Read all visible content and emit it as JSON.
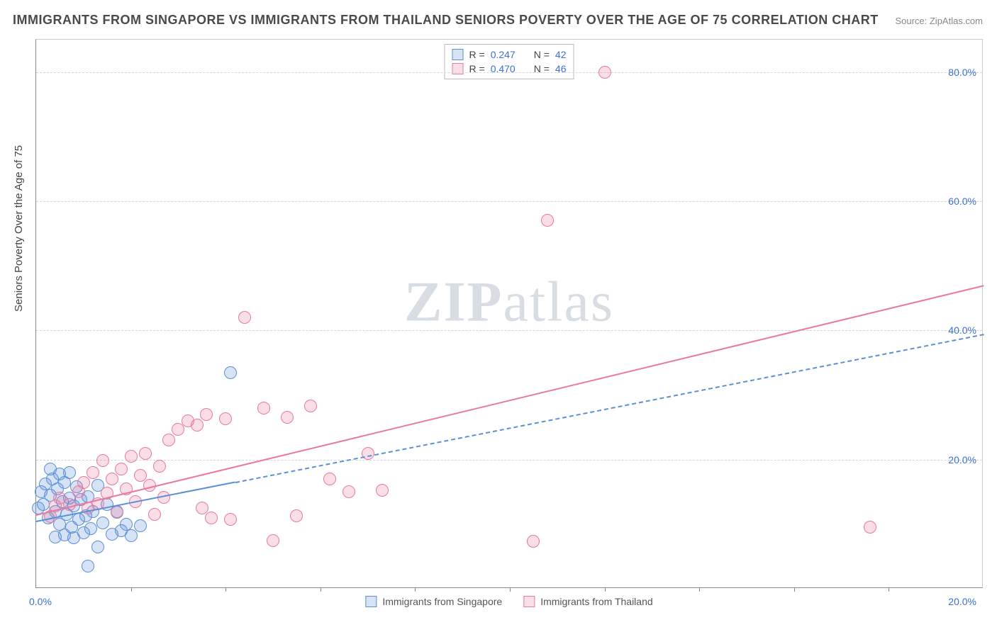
{
  "title": "IMMIGRANTS FROM SINGAPORE VS IMMIGRANTS FROM THAILAND SENIORS POVERTY OVER THE AGE OF 75 CORRELATION CHART",
  "source_label": "Source: ",
  "source_name": "ZipAtlas.com",
  "y_axis_title": "Seniors Poverty Over the Age of 75",
  "watermark": {
    "bold": "ZIP",
    "rest": "atlas"
  },
  "chart": {
    "type": "scatter",
    "background_color": "#ffffff",
    "grid_color": "#d5d5d5",
    "axis_color": "#888888",
    "tick_label_color": "#3b6fd6",
    "xlim": [
      0,
      20
    ],
    "ylim": [
      0,
      85
    ],
    "x_ticks_minor_step": 2,
    "x_tick_labels": [
      {
        "v": 0,
        "label": "0.0%"
      },
      {
        "v": 20,
        "label": "20.0%"
      }
    ],
    "y_gridlines": [
      20,
      40,
      60,
      80
    ],
    "y_tick_labels": [
      {
        "v": 20,
        "label": "20.0%"
      },
      {
        "v": 40,
        "label": "40.0%"
      },
      {
        "v": 60,
        "label": "60.0%"
      },
      {
        "v": 80,
        "label": "80.0%"
      }
    ],
    "marker_radius": 9,
    "marker_border_width": 1.2,
    "marker_fill_opacity": 0.25,
    "trend_line_width": 2
  },
  "series": [
    {
      "id": "singapore",
      "label": "Immigrants from Singapore",
      "color": "#5b8fd6",
      "fill": "rgba(91,143,214,0.25)",
      "R": "0.247",
      "N": "42",
      "trend": {
        "x1": 0,
        "y1": 10.5,
        "x2": 20,
        "y2": 39.5,
        "solid_until_x": 4.2
      },
      "points": [
        [
          0.05,
          12.5
        ],
        [
          0.1,
          15
        ],
        [
          0.15,
          13
        ],
        [
          0.2,
          16.2
        ],
        [
          0.25,
          11
        ],
        [
          0.3,
          14.5
        ],
        [
          0.35,
          17
        ],
        [
          0.4,
          12
        ],
        [
          0.45,
          15.5
        ],
        [
          0.5,
          10
        ],
        [
          0.55,
          13.5
        ],
        [
          0.6,
          16.5
        ],
        [
          0.65,
          11.5
        ],
        [
          0.7,
          14
        ],
        [
          0.75,
          9.5
        ],
        [
          0.8,
          12.8
        ],
        [
          0.85,
          15.8
        ],
        [
          0.9,
          10.8
        ],
        [
          0.95,
          13.8
        ],
        [
          1,
          8.7
        ],
        [
          1.05,
          11.3
        ],
        [
          1.1,
          14.3
        ],
        [
          1.15,
          9.3
        ],
        [
          1.2,
          12
        ],
        [
          1.3,
          16
        ],
        [
          1.4,
          10.2
        ],
        [
          1.5,
          13
        ],
        [
          1.6,
          8.5
        ],
        [
          1.7,
          11.8
        ],
        [
          1.8,
          9
        ],
        [
          1.9,
          10
        ],
        [
          2,
          8.2
        ],
        [
          1.3,
          6.5
        ],
        [
          2.2,
          9.8
        ],
        [
          0.3,
          18.5
        ],
        [
          0.5,
          17.8
        ],
        [
          0.7,
          18
        ],
        [
          0.4,
          8
        ],
        [
          0.6,
          8.3
        ],
        [
          0.8,
          7.9
        ],
        [
          4.1,
          33.5
        ],
        [
          1.1,
          3.5
        ]
      ]
    },
    {
      "id": "thailand",
      "label": "Immigrants from Thailand",
      "color": "#e879a0",
      "fill": "rgba(232,121,160,0.25)",
      "R": "0.470",
      "N": "46",
      "trend": {
        "x1": 0,
        "y1": 11.5,
        "x2": 20,
        "y2": 47,
        "solid_until_x": 20
      },
      "points": [
        [
          0.5,
          14
        ],
        [
          0.7,
          13
        ],
        [
          0.9,
          15
        ],
        [
          1,
          16.5
        ],
        [
          1.1,
          12.5
        ],
        [
          1.2,
          18
        ],
        [
          1.3,
          13.2
        ],
        [
          1.4,
          19.8
        ],
        [
          1.5,
          14.8
        ],
        [
          1.6,
          17
        ],
        [
          1.7,
          12
        ],
        [
          1.8,
          18.5
        ],
        [
          1.9,
          15.5
        ],
        [
          2,
          20.5
        ],
        [
          2.1,
          13.5
        ],
        [
          2.2,
          17.5
        ],
        [
          2.3,
          21
        ],
        [
          2.4,
          16
        ],
        [
          2.5,
          11.5
        ],
        [
          2.6,
          19
        ],
        [
          2.7,
          14.2
        ],
        [
          2.8,
          23
        ],
        [
          3,
          24.7
        ],
        [
          3.2,
          26
        ],
        [
          3.4,
          25.3
        ],
        [
          3.5,
          12.5
        ],
        [
          3.6,
          27
        ],
        [
          3.7,
          11
        ],
        [
          4,
          26.3
        ],
        [
          4.1,
          10.8
        ],
        [
          4.4,
          42
        ],
        [
          4.8,
          28
        ],
        [
          5,
          7.5
        ],
        [
          5.3,
          26.5
        ],
        [
          5.5,
          11.3
        ],
        [
          5.8,
          28.3
        ],
        [
          6.2,
          17
        ],
        [
          6.6,
          15
        ],
        [
          7,
          21
        ],
        [
          7.3,
          15.3
        ],
        [
          10.8,
          57
        ],
        [
          10.5,
          7.4
        ],
        [
          17.6,
          9.5
        ],
        [
          12,
          80
        ],
        [
          0.3,
          11.2
        ],
        [
          0.4,
          12.8
        ]
      ]
    }
  ],
  "legend_top": {
    "r_prefix": "R = ",
    "n_prefix": "N = "
  }
}
